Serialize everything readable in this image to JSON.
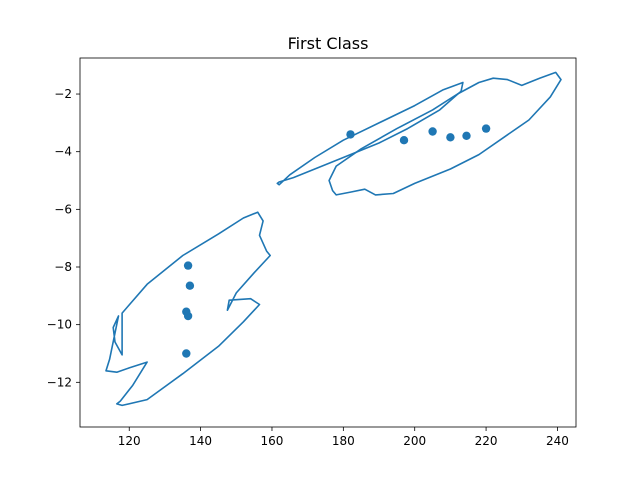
{
  "chart_data": {
    "type": "scatter",
    "title": "First Class",
    "xlabel": "",
    "ylabel": "",
    "xlim": [
      106.2,
      245.2
    ],
    "ylim": [
      -13.55,
      -0.75
    ],
    "xticks": [
      120,
      140,
      160,
      180,
      200,
      220,
      240
    ],
    "yticks": [
      -2,
      -4,
      -6,
      -8,
      -10,
      -12
    ],
    "grid": false,
    "legend": "none",
    "colors": {
      "series": "#1f77b4"
    },
    "points": {
      "x": [
        182,
        197,
        205,
        210,
        214.5,
        220,
        136.5,
        137,
        136,
        136.5,
        136
      ],
      "y": [
        -3.4,
        -3.6,
        -3.3,
        -3.5,
        -3.45,
        -3.2,
        -7.95,
        -8.65,
        -9.55,
        -9.7,
        -11
      ]
    },
    "contours": [
      {
        "name": "",
        "x": [
          162,
          165,
          172,
          180,
          190,
          200,
          208,
          213.5,
          213,
          207,
          198,
          190,
          180,
          172,
          166,
          162,
          161.5,
          162
        ],
        "y": [
          -5.15,
          -4.8,
          -4.2,
          -3.6,
          -3.0,
          -2.4,
          -1.85,
          -1.6,
          -1.9,
          -2.55,
          -3.2,
          -3.7,
          -4.2,
          -4.6,
          -4.9,
          -5.05,
          -5.1,
          -5.15
        ]
      },
      {
        "name": "",
        "x": [
          177,
          176,
          178,
          185,
          195,
          205,
          212,
          218,
          222,
          226,
          230,
          235,
          239.5,
          241,
          238,
          232,
          225,
          218,
          210,
          200,
          194,
          189,
          186,
          182,
          178,
          177
        ],
        "y": [
          -5.35,
          -5.0,
          -4.5,
          -3.9,
          -3.2,
          -2.55,
          -2.0,
          -1.6,
          -1.45,
          -1.5,
          -1.7,
          -1.45,
          -1.25,
          -1.5,
          -2.1,
          -2.9,
          -3.5,
          -4.1,
          -4.6,
          -5.1,
          -5.45,
          -5.5,
          -5.3,
          -5.4,
          -5.5,
          -5.35
        ]
      },
      {
        "name": "",
        "x": [
          118,
          116,
          115.5,
          117,
          114.5,
          113.5,
          116.5,
          120,
          125,
          121,
          117.5,
          116.5,
          118,
          125,
          135,
          145,
          152,
          156.5,
          154,
          148,
          147.5,
          150,
          155,
          159.5,
          158.5,
          156.5,
          157.5,
          156,
          152,
          145,
          135,
          125,
          118
        ],
        "y": [
          -11.05,
          -10.6,
          -10.1,
          -9.7,
          -11.2,
          -11.6,
          -11.65,
          -11.5,
          -11.3,
          -12.1,
          -12.65,
          -12.75,
          -12.8,
          -12.6,
          -11.7,
          -10.75,
          -9.9,
          -9.3,
          -9.1,
          -9.15,
          -9.5,
          -8.9,
          -8.2,
          -7.6,
          -7.45,
          -6.9,
          -6.4,
          -6.1,
          -6.3,
          -6.85,
          -7.6,
          -8.6,
          -9.6
        ]
      }
    ]
  }
}
